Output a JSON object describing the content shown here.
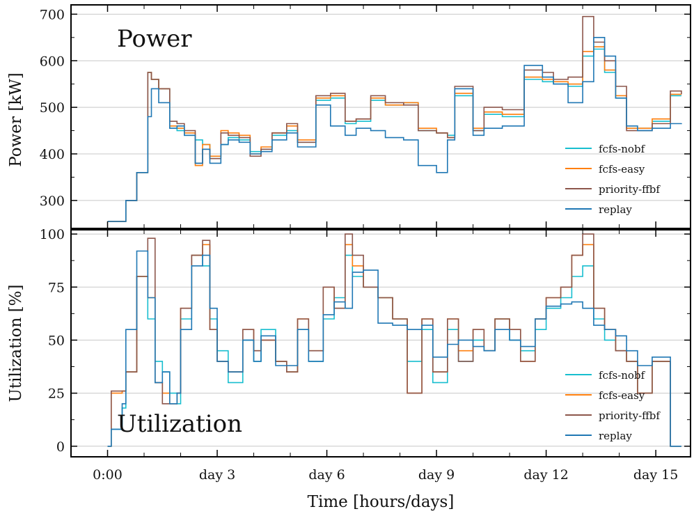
{
  "chart_data": [
    {
      "type": "line",
      "title": "Power",
      "ylabel": "Power [kW]",
      "xlabel": "Time [hours/days]",
      "ylim": [
        240,
        720
      ],
      "xlim": [
        -1.0,
        15.95
      ],
      "grid": true,
      "yticks": [
        300,
        400,
        500,
        600,
        700
      ],
      "legend": {
        "placement": "lower-right"
      },
      "series": [
        {
          "name": "fcfs-nobf",
          "color": "#17becf",
          "x": [
            0,
            0.5,
            0.6,
            0.8,
            1.1,
            1.2,
            1.4,
            1.7,
            1.9,
            2.1,
            2.4,
            2.6,
            2.8,
            3.1,
            3.3,
            3.6,
            3.9,
            4.2,
            4.5,
            4.9,
            5.2,
            5.7,
            6.1,
            6.5,
            6.8,
            7.2,
            7.6,
            8.1,
            8.5,
            9.0,
            9.3,
            9.5,
            10.0,
            10.3,
            10.8,
            11.4,
            11.9,
            12.2,
            12.6,
            13.0,
            13.3,
            13.6,
            13.9,
            14.2,
            14.5,
            14.9,
            15.4,
            15.7
          ],
          "y": [
            255,
            300,
            300,
            360,
            575,
            560,
            540,
            455,
            450,
            440,
            430,
            420,
            395,
            420,
            435,
            430,
            405,
            410,
            440,
            450,
            425,
            515,
            520,
            465,
            470,
            515,
            505,
            510,
            450,
            445,
            440,
            525,
            450,
            485,
            480,
            560,
            555,
            550,
            545,
            610,
            625,
            575,
            520,
            455,
            455,
            470,
            525,
            525
          ]
        },
        {
          "name": "fcfs-easy",
          "color": "#ff7f0e",
          "x": [
            0,
            0.5,
            0.6,
            0.8,
            1.1,
            1.2,
            1.4,
            1.7,
            1.9,
            2.1,
            2.4,
            2.6,
            2.8,
            3.1,
            3.3,
            3.6,
            3.9,
            4.2,
            4.5,
            4.9,
            5.2,
            5.7,
            6.1,
            6.5,
            6.8,
            7.2,
            7.6,
            8.1,
            8.5,
            9.0,
            9.3,
            9.5,
            10.0,
            10.3,
            10.8,
            11.4,
            11.9,
            12.2,
            12.6,
            13.0,
            13.3,
            13.6,
            13.9,
            14.2,
            14.5,
            14.9,
            15.4,
            15.7
          ],
          "y": [
            255,
            300,
            300,
            360,
            575,
            560,
            540,
            460,
            455,
            445,
            375,
            420,
            395,
            450,
            445,
            440,
            400,
            415,
            445,
            460,
            430,
            520,
            525,
            470,
            475,
            520,
            505,
            510,
            455,
            445,
            435,
            530,
            455,
            490,
            485,
            565,
            560,
            555,
            550,
            620,
            630,
            580,
            525,
            455,
            455,
            475,
            528,
            528
          ]
        },
        {
          "name": "priority-ffbf",
          "color": "#8c564b",
          "x": [
            0,
            0.5,
            0.6,
            0.8,
            1.1,
            1.2,
            1.4,
            1.7,
            1.9,
            2.1,
            2.4,
            2.6,
            2.8,
            3.1,
            3.3,
            3.6,
            3.9,
            4.2,
            4.5,
            4.9,
            5.2,
            5.7,
            6.1,
            6.5,
            6.8,
            7.2,
            7.6,
            8.1,
            8.5,
            9.0,
            9.3,
            9.5,
            10.0,
            10.3,
            10.8,
            11.4,
            11.9,
            12.2,
            12.6,
            13.0,
            13.3,
            13.6,
            13.9,
            14.2,
            14.5,
            14.9,
            15.4,
            15.7
          ],
          "y": [
            255,
            300,
            300,
            360,
            575,
            560,
            540,
            470,
            465,
            450,
            380,
            410,
            390,
            445,
            440,
            435,
            395,
            410,
            445,
            465,
            425,
            525,
            530,
            470,
            475,
            525,
            510,
            505,
            450,
            445,
            435,
            545,
            450,
            500,
            495,
            580,
            575,
            560,
            565,
            695,
            640,
            600,
            545,
            450,
            450,
            465,
            535,
            528
          ]
        },
        {
          "name": "replay",
          "color": "#1f77b4",
          "x": [
            0,
            0.5,
            0.6,
            0.8,
            1.1,
            1.2,
            1.4,
            1.7,
            1.9,
            2.1,
            2.4,
            2.6,
            2.8,
            3.1,
            3.3,
            3.6,
            3.9,
            4.2,
            4.5,
            4.9,
            5.2,
            5.7,
            6.1,
            6.5,
            6.8,
            7.2,
            7.6,
            8.1,
            8.5,
            9.0,
            9.3,
            9.5,
            10.0,
            10.3,
            10.8,
            11.4,
            11.9,
            12.2,
            12.6,
            13.0,
            13.3,
            13.6,
            13.9,
            14.2,
            14.5,
            14.9,
            15.4,
            15.7
          ],
          "y": [
            255,
            300,
            300,
            360,
            480,
            540,
            510,
            455,
            460,
            440,
            380,
            410,
            380,
            420,
            430,
            425,
            400,
            405,
            430,
            445,
            415,
            505,
            460,
            440,
            455,
            450,
            435,
            430,
            375,
            360,
            430,
            540,
            440,
            455,
            460,
            590,
            565,
            550,
            510,
            555,
            650,
            610,
            520,
            460,
            450,
            455,
            465,
            466
          ]
        }
      ]
    },
    {
      "type": "line",
      "title": "Utilization",
      "ylabel": "Utilization [%]",
      "xlabel": "Time [hours/days]",
      "ylim": [
        -5,
        102
      ],
      "xlim": [
        -1.0,
        15.95
      ],
      "grid": true,
      "yticks": [
        0,
        25,
        50,
        75,
        100
      ],
      "legend": {
        "placement": "lower-right"
      },
      "series": [
        {
          "name": "fcfs-nobf",
          "color": "#17becf",
          "x": [
            0,
            0.1,
            0.4,
            0.5,
            0.8,
            1.1,
            1.3,
            1.5,
            1.7,
            1.9,
            2.0,
            2.3,
            2.6,
            2.8,
            3.0,
            3.3,
            3.7,
            4.0,
            4.2,
            4.6,
            4.9,
            5.2,
            5.5,
            5.9,
            6.2,
            6.5,
            6.7,
            7.0,
            7.4,
            7.8,
            8.2,
            8.6,
            8.9,
            9.3,
            9.6,
            10.0,
            10.3,
            10.6,
            11.0,
            11.3,
            11.7,
            12.0,
            12.4,
            12.7,
            13.0,
            13.3,
            13.6,
            13.9,
            14.2,
            14.5,
            14.9,
            15.4,
            15.7
          ],
          "y": [
            0,
            8,
            18,
            35,
            80,
            60,
            40,
            35,
            25,
            20,
            60,
            90,
            85,
            60,
            45,
            30,
            50,
            40,
            55,
            40,
            35,
            55,
            40,
            60,
            70,
            90,
            80,
            75,
            70,
            60,
            40,
            55,
            30,
            55,
            40,
            50,
            45,
            60,
            50,
            45,
            55,
            65,
            70,
            80,
            85,
            60,
            50,
            45,
            40,
            25,
            40,
            0,
            0
          ]
        },
        {
          "name": "fcfs-easy",
          "color": "#ff7f0e",
          "x": [
            0,
            0.1,
            0.4,
            0.5,
            0.8,
            1.1,
            1.3,
            1.5,
            1.7,
            1.9,
            2.0,
            2.3,
            2.6,
            2.8,
            3.0,
            3.3,
            3.7,
            4.0,
            4.2,
            4.6,
            4.9,
            5.2,
            5.5,
            5.9,
            6.2,
            6.5,
            6.7,
            7.0,
            7.4,
            7.8,
            8.2,
            8.6,
            8.9,
            9.3,
            9.6,
            10.0,
            10.3,
            10.6,
            11.0,
            11.3,
            11.7,
            12.0,
            12.4,
            12.7,
            13.0,
            13.3,
            13.6,
            13.9,
            14.2,
            14.5,
            14.9,
            15.4,
            15.7
          ],
          "y": [
            0,
            25,
            26,
            35,
            80,
            70,
            30,
            25,
            20,
            25,
            65,
            90,
            95,
            55,
            40,
            35,
            55,
            45,
            50,
            40,
            35,
            60,
            45,
            75,
            65,
            95,
            85,
            75,
            70,
            60,
            25,
            60,
            35,
            60,
            45,
            55,
            45,
            60,
            55,
            40,
            60,
            70,
            75,
            90,
            95,
            65,
            55,
            45,
            40,
            25,
            40,
            0,
            0
          ]
        },
        {
          "name": "priority-ffbf",
          "color": "#8c564b",
          "x": [
            0,
            0.1,
            0.4,
            0.5,
            0.8,
            1.1,
            1.3,
            1.5,
            1.7,
            1.9,
            2.0,
            2.3,
            2.6,
            2.8,
            3.0,
            3.3,
            3.7,
            4.0,
            4.2,
            4.6,
            4.9,
            5.2,
            5.5,
            5.9,
            6.2,
            6.5,
            6.7,
            7.0,
            7.4,
            7.8,
            8.2,
            8.6,
            8.9,
            9.3,
            9.6,
            10.0,
            10.3,
            10.6,
            11.0,
            11.3,
            11.7,
            12.0,
            12.4,
            12.7,
            13.0,
            13.3,
            13.6,
            13.9,
            14.2,
            14.5,
            14.9,
            15.4,
            15.7
          ],
          "y": [
            0,
            26,
            26,
            35,
            80,
            98,
            30,
            20,
            20,
            25,
            65,
            90,
            97,
            55,
            40,
            35,
            55,
            45,
            50,
            40,
            35,
            60,
            45,
            75,
            65,
            100,
            90,
            75,
            70,
            60,
            25,
            60,
            35,
            60,
            40,
            55,
            45,
            60,
            55,
            40,
            60,
            70,
            75,
            90,
            100,
            65,
            55,
            45,
            40,
            25,
            40,
            0,
            0
          ]
        },
        {
          "name": "replay",
          "color": "#1f77b4",
          "x": [
            0,
            0.1,
            0.4,
            0.5,
            0.8,
            1.1,
            1.3,
            1.5,
            1.7,
            1.9,
            2.0,
            2.3,
            2.6,
            2.8,
            3.0,
            3.3,
            3.7,
            4.0,
            4.2,
            4.6,
            4.9,
            5.2,
            5.5,
            5.9,
            6.2,
            6.5,
            6.7,
            7.0,
            7.4,
            7.8,
            8.2,
            8.6,
            8.9,
            9.3,
            9.6,
            10.0,
            10.3,
            10.6,
            11.0,
            11.3,
            11.7,
            12.0,
            12.4,
            12.7,
            13.0,
            13.3,
            13.6,
            13.9,
            14.2,
            14.5,
            14.9,
            15.4,
            15.7
          ],
          "y": [
            0,
            8,
            20,
            55,
            92,
            70,
            30,
            35,
            20,
            25,
            55,
            85,
            90,
            65,
            40,
            35,
            50,
            40,
            52,
            38,
            38,
            55,
            40,
            62,
            68,
            65,
            82,
            83,
            58,
            57,
            55,
            57,
            42,
            48,
            50,
            47,
            45,
            55,
            50,
            47,
            60,
            66,
            67,
            68,
            65,
            57,
            55,
            52,
            45,
            38,
            42,
            0,
            0
          ]
        }
      ]
    }
  ],
  "x_axis": {
    "tick_labels": [
      {
        "label": "0:00",
        "x": 0
      },
      {
        "label": "day 3",
        "x": 3
      },
      {
        "label": "day 6",
        "x": 6
      },
      {
        "label": "day 9",
        "x": 9
      },
      {
        "label": "day 12",
        "x": 12
      },
      {
        "label": "day 15",
        "x": 15
      }
    ],
    "minor_ticks": [
      1,
      2,
      4,
      5,
      7,
      8,
      10,
      11,
      13,
      14
    ],
    "label": "Time [hours/days]"
  },
  "legend_labels": [
    "fcfs-nobf",
    "fcfs-easy",
    "priority-ffbf",
    "replay"
  ]
}
